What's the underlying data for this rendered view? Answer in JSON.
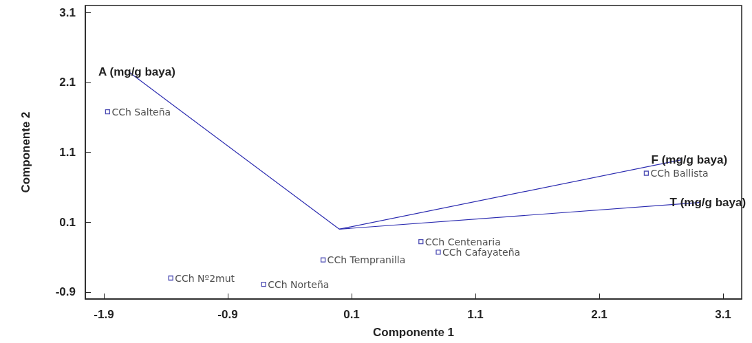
{
  "chart_data": {
    "type": "scatter",
    "xlabel": "Componente 1",
    "ylabel": "Componente 2",
    "xlim": [
      -2.05,
      3.25
    ],
    "xticks": [
      -1.9,
      -0.9,
      0.1,
      1.1,
      2.1,
      3.1
    ],
    "ylim": [
      -1.0,
      3.2
    ],
    "yticks": [
      -0.9,
      0.1,
      1.1,
      2.1,
      3.1
    ],
    "grid": false,
    "series": [
      {
        "marker": "square",
        "color": "#1f1fa0",
        "x": [
          -1.87,
          2.48,
          0.66,
          0.8,
          -0.13,
          -1.36,
          -0.61
        ],
        "values": [
          1.68,
          0.8,
          -0.18,
          -0.33,
          -0.44,
          -0.7,
          -0.79
        ]
      },
      {
        "type": "line",
        "name": "A (mg/g baya)",
        "marker": "none",
        "color": "#2b2bb0",
        "x": [
          0,
          -1.7
        ],
        "values": [
          0,
          2.25
        ]
      },
      {
        "type": "line",
        "name": "F (mg/g baya)",
        "marker": "none",
        "color": "#2b2bb0",
        "x": [
          0,
          2.76
        ],
        "values": [
          0,
          0.99
        ]
      },
      {
        "type": "line",
        "name": "T (mg/g baya)",
        "marker": "none",
        "color": "#2b2bb0",
        "x": [
          0,
          2.91
        ],
        "values": [
          0,
          0.38
        ]
      }
    ],
    "annotations": [
      {
        "text": "CCh Salteña",
        "x": -1.87,
        "y": 1.68
      },
      {
        "text": "CCh Ballista",
        "x": 2.48,
        "y": 0.8
      },
      {
        "text": "CCh Centenaria",
        "x": 0.66,
        "y": -0.18
      },
      {
        "text": "CCh Cafayateña",
        "x": 0.8,
        "y": -0.33
      },
      {
        "text": "CCh Tempranilla",
        "x": -0.13,
        "y": -0.44
      },
      {
        "text": "CCh Nº2mut",
        "x": -1.36,
        "y": -0.7
      },
      {
        "text": "CCh Norteña",
        "x": -0.61,
        "y": -0.79
      }
    ]
  }
}
